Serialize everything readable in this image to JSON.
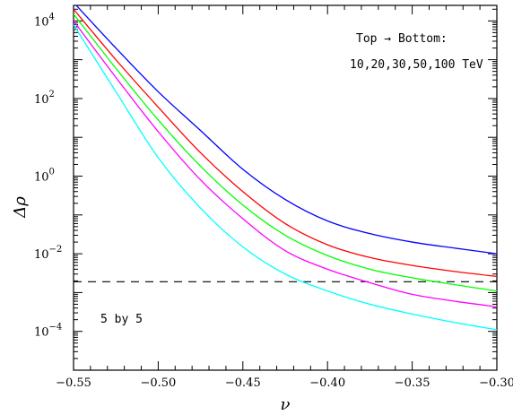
{
  "chart_data": {
    "type": "line",
    "xlabel": "ν",
    "ylabel": "Δρ",
    "xlim": [
      -0.55,
      -0.3
    ],
    "ylim_log10": [
      -5,
      4.4
    ],
    "yscale": "log",
    "grid": false,
    "x_ticks": [
      -0.55,
      -0.5,
      -0.45,
      -0.4,
      -0.35,
      -0.3
    ],
    "x_tick_labels": [
      "−0.55",
      "−0.50",
      "−0.45",
      "−0.40",
      "−0.35",
      "−0.30"
    ],
    "y_ticks": [
      {
        "base": "10",
        "exp": "4",
        "log10": 4
      },
      {
        "base": "10",
        "exp": "2",
        "log10": 2
      },
      {
        "base": "10",
        "exp": "0",
        "log10": 0
      },
      {
        "base": "10",
        "exp": "−2",
        "log10": -2
      },
      {
        "base": "10",
        "exp": "−4",
        "log10": -4
      }
    ],
    "annotations": {
      "legend_line1": "Top → Bottom:",
      "legend_line2": "10,20,30,50,100 TeV",
      "corner_label": "5 by 5"
    },
    "reference_line": {
      "y": 0.0019,
      "style": "dashed",
      "color": "#000000"
    },
    "series": [
      {
        "color": "#0000ff",
        "x": [
          -0.55,
          -0.525,
          -0.5,
          -0.475,
          -0.45,
          -0.425,
          -0.4,
          -0.375,
          -0.35,
          -0.325,
          -0.3
        ],
        "y": [
          30000,
          2000,
          150,
          15,
          1.5,
          0.25,
          0.07,
          0.033,
          0.02,
          0.014,
          0.01
        ]
      },
      {
        "color": "#ff0000",
        "x": [
          -0.55,
          -0.525,
          -0.5,
          -0.475,
          -0.45,
          -0.425,
          -0.4,
          -0.375,
          -0.35,
          -0.325,
          -0.3
        ],
        "y": [
          20000,
          1000,
          60,
          4,
          0.4,
          0.06,
          0.017,
          0.008,
          0.005,
          0.0035,
          0.0026
        ]
      },
      {
        "color": "#00ff00",
        "x": [
          -0.55,
          -0.525,
          -0.5,
          -0.475,
          -0.45,
          -0.425,
          -0.4,
          -0.375,
          -0.35,
          -0.325,
          -0.3
        ],
        "y": [
          15000,
          600,
          28,
          1.8,
          0.18,
          0.03,
          0.009,
          0.004,
          0.0024,
          0.0016,
          0.0011
        ]
      },
      {
        "color": "#ff00ff",
        "x": [
          -0.55,
          -0.525,
          -0.5,
          -0.475,
          -0.45,
          -0.425,
          -0.4,
          -0.375,
          -0.35,
          -0.325,
          -0.3
        ],
        "y": [
          10000,
          350,
          14,
          0.8,
          0.08,
          0.012,
          0.004,
          0.0018,
          0.0009,
          0.0006,
          0.00043
        ]
      },
      {
        "color": "#00ffff",
        "x": [
          -0.55,
          -0.525,
          -0.5,
          -0.475,
          -0.45,
          -0.425,
          -0.4,
          -0.375,
          -0.35,
          -0.325,
          -0.3
        ],
        "y": [
          8000,
          150,
          3,
          0.15,
          0.015,
          0.003,
          0.0011,
          0.0005,
          0.00028,
          0.00017,
          0.00011
        ]
      }
    ]
  }
}
